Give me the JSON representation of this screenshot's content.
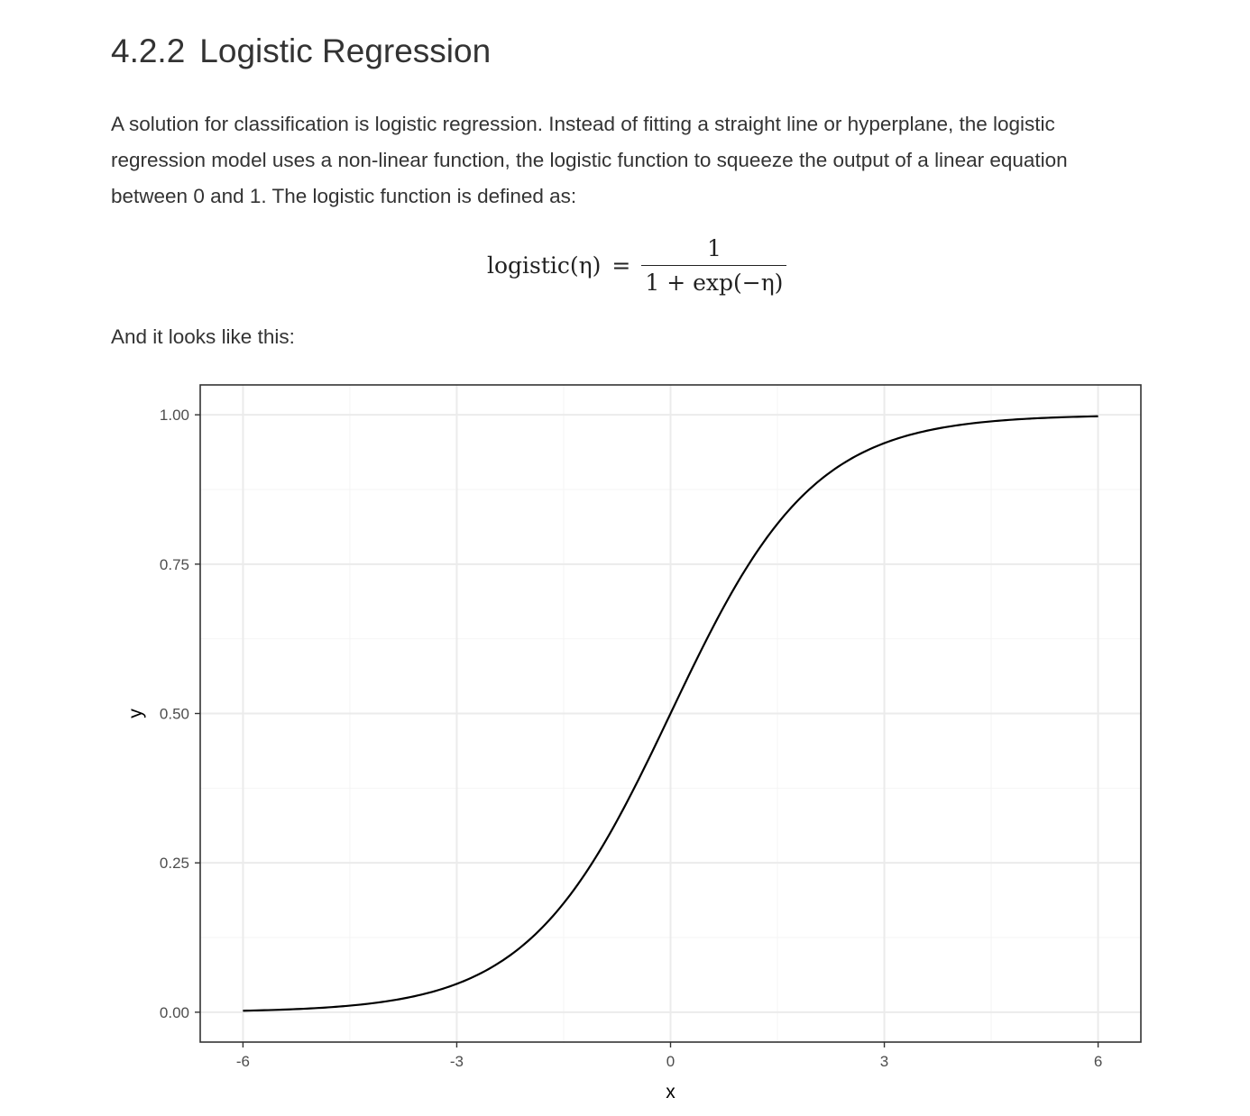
{
  "section": {
    "number": "4.2.2",
    "title": "Logistic Regression"
  },
  "intro_text": "A solution for classification is logistic regression. Instead of fitting a straight line or hyperplane, the logistic regression model uses a non-linear function, the logistic function to squeeze the output of a linear equation between 0 and 1. The logistic function is defined as:",
  "equation": {
    "lhs": "logistic(η)",
    "equals": "=",
    "numerator": "1",
    "denominator": "1 + exp(−η)"
  },
  "lead_text": "And it looks like this:",
  "chart_data": {
    "type": "line",
    "function": "logistic",
    "x_range": [
      -6,
      6
    ],
    "xlabel": "x",
    "ylabel": "y",
    "xlim": [
      -6.6,
      6.6
    ],
    "ylim": [
      -0.05,
      1.05
    ],
    "x_ticks": [
      -6,
      -3,
      0,
      3,
      6
    ],
    "x_tick_labels": [
      "-6",
      "-3",
      "0",
      "3",
      "6"
    ],
    "y_ticks": [
      0,
      0.25,
      0.5,
      0.75,
      1
    ],
    "y_tick_labels": [
      "0.00",
      "0.25",
      "0.50",
      "0.75",
      "1.00"
    ],
    "grid": true,
    "legend": "none",
    "series": [
      {
        "x": [
          -6,
          -5.5,
          -5,
          -4.5,
          -4,
          -3.5,
          -3,
          -2.5,
          -2,
          -1.5,
          -1,
          -0.5,
          0,
          0.5,
          1,
          1.5,
          2,
          2.5,
          3,
          3.5,
          4,
          4.5,
          5,
          5.5,
          6
        ],
        "y": [
          0.0025,
          0.0041,
          0.0067,
          0.011,
          0.018,
          0.0293,
          0.0474,
          0.0759,
          0.1192,
          0.1824,
          0.2689,
          0.3775,
          0.5,
          0.6225,
          0.7311,
          0.8176,
          0.8808,
          0.9241,
          0.9526,
          0.9707,
          0.982,
          0.989,
          0.9933,
          0.9959,
          0.9975
        ]
      }
    ],
    "colors": {
      "line": "#000000",
      "grid_major": "#ebebeb",
      "grid_minor": "#f4f4f4",
      "panel_border": "#333333",
      "tick_text": "#4d4d4d"
    }
  }
}
